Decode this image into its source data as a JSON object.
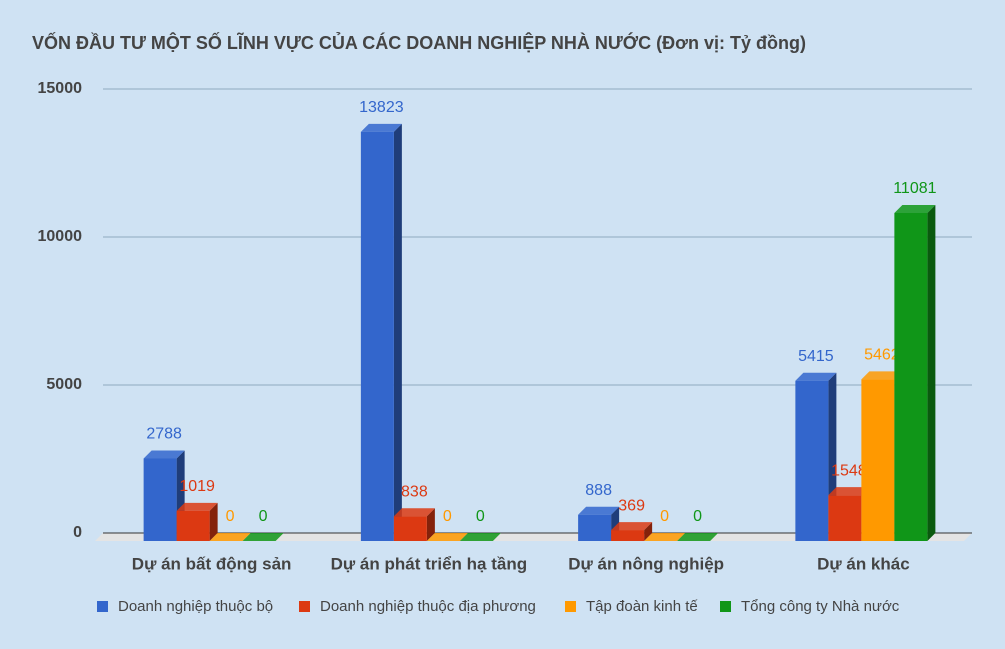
{
  "chart_data": {
    "type": "bar3d",
    "title": "VỐN ĐẦU TƯ MỘT SỐ LĨNH VỰC CỦA CÁC DOANH NGHIỆP NHÀ NƯỚC (Đơn vị: Tỷ đồng)",
    "categories": [
      "Dự án bất động sản",
      "Dự án phát triển hạ tầng",
      "Dự án nông nghiệp",
      "Dự án khác"
    ],
    "series": [
      {
        "name": "Doanh nghiệp thuộc bộ",
        "color": "#3366cc",
        "values": [
          2788,
          13823,
          888,
          5415
        ]
      },
      {
        "name": "Doanh nghiệp thuộc địa phương",
        "color": "#dc3912",
        "values": [
          1019,
          838,
          369,
          1548
        ]
      },
      {
        "name": "Tập đoàn kinh tế",
        "color": "#ff9900",
        "values": [
          0,
          0,
          0,
          5462
        ]
      },
      {
        "name": "Tổng công ty Nhà nước",
        "color": "#109618",
        "values": [
          0,
          0,
          0,
          11081
        ]
      }
    ],
    "ylim": [
      0,
      15000
    ],
    "yticks": [
      0,
      5000,
      10000,
      15000
    ],
    "grid": true,
    "legend": "bottom"
  }
}
